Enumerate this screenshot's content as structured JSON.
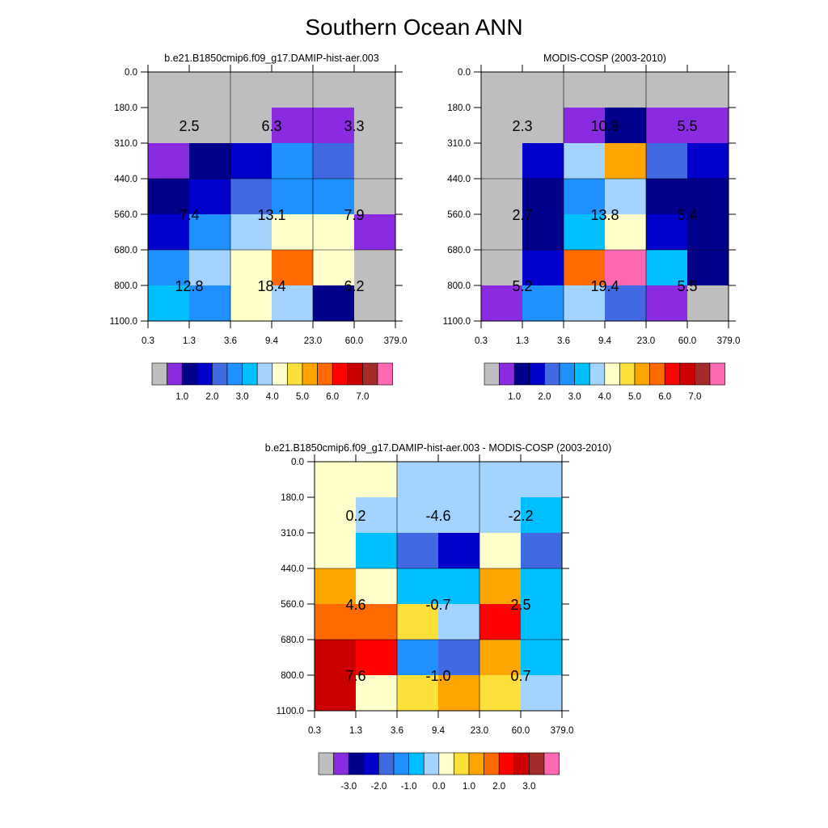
{
  "title": "Southern Ocean ANN",
  "palette": [
    "#BEBEBE",
    "#8A2BE2",
    "#00008B",
    "#0000CD",
    "#4169E1",
    "#1E90FF",
    "#00BFFF",
    "#A3D3FF",
    "#FFFFCC",
    "#FDE03A",
    "#FFA500",
    "#FF6A00",
    "#FF0000",
    "#CC0000",
    "#A52A2A",
    "#FF69B4"
  ],
  "chart_data": [
    {
      "type": "heatmap",
      "title": "b.e21.B1850cmip6.f09_g17.DAMIP-hist-aer.003",
      "x_tick_labels": [
        "0.3",
        "1.3",
        "3.6",
        "9.4",
        "23.0",
        "60.0",
        "379.0"
      ],
      "y_tick_labels": [
        "0.0",
        "180.0",
        "310.0",
        "440.0",
        "560.0",
        "680.0",
        "800.0",
        "1100.0"
      ],
      "cell_colors": [
        [
          "#BEBEBE",
          "#BEBEBE",
          "#BEBEBE",
          "#BEBEBE",
          "#BEBEBE",
          "#BEBEBE"
        ],
        [
          "#BEBEBE",
          "#BEBEBE",
          "#BEBEBE",
          "#8A2BE2",
          "#8A2BE2",
          "#BEBEBE"
        ],
        [
          "#8A2BE2",
          "#00008B",
          "#0000CD",
          "#1E90FF",
          "#4169E1",
          "#BEBEBE"
        ],
        [
          "#00008B",
          "#0000CD",
          "#4169E1",
          "#1E90FF",
          "#1E90FF",
          "#BEBEBE"
        ],
        [
          "#0000CD",
          "#1E90FF",
          "#A3D3FF",
          "#FFFFCC",
          "#FFFFCC",
          "#8A2BE2"
        ],
        [
          "#1E90FF",
          "#A3D3FF",
          "#FFFFCC",
          "#FF6A00",
          "#FFFFCC",
          "#BEBEBE"
        ],
        [
          "#00BFFF",
          "#1E90FF",
          "#FFFFCC",
          "#A3D3FF",
          "#00008B",
          "#BEBEBE"
        ]
      ],
      "block_values": [
        [
          "2.5",
          "6.3",
          "3.3"
        ],
        [
          "7.4",
          "13.1",
          "7.9"
        ],
        [
          "12.8",
          "18.4",
          "6.2"
        ]
      ],
      "colorbar_labels": [
        "1.0",
        "2.0",
        "3.0",
        "4.0",
        "5.0",
        "6.0",
        "7.0"
      ],
      "colorbar_colors": [
        "#BEBEBE",
        "#8A2BE2",
        "#00008B",
        "#0000CD",
        "#4169E1",
        "#1E90FF",
        "#00BFFF",
        "#A3D3FF",
        "#FFFFCC",
        "#FDE03A",
        "#FFA500",
        "#FF6A00",
        "#FF0000",
        "#CC0000",
        "#A52A2A",
        "#FF69B4"
      ]
    },
    {
      "type": "heatmap",
      "title": "MODIS-COSP (2003-2010)",
      "x_tick_labels": [
        "0.3",
        "1.3",
        "3.6",
        "9.4",
        "23.0",
        "60.0",
        "379.0"
      ],
      "y_tick_labels": [
        "0.0",
        "180.0",
        "310.0",
        "440.0",
        "560.0",
        "680.0",
        "800.0",
        "1100.0"
      ],
      "cell_colors": [
        [
          "#BEBEBE",
          "#BEBEBE",
          "#BEBEBE",
          "#BEBEBE",
          "#BEBEBE",
          "#BEBEBE"
        ],
        [
          "#BEBEBE",
          "#BEBEBE",
          "#8A2BE2",
          "#00008B",
          "#8A2BE2",
          "#8A2BE2"
        ],
        [
          "#BEBEBE",
          "#0000CD",
          "#A3D3FF",
          "#FFA500",
          "#4169E1",
          "#0000CD"
        ],
        [
          "#BEBEBE",
          "#00008B",
          "#1E90FF",
          "#A3D3FF",
          "#00008B",
          "#00008B"
        ],
        [
          "#BEBEBE",
          "#00008B",
          "#00BFFF",
          "#FFFFCC",
          "#0000CD",
          "#00008B"
        ],
        [
          "#BEBEBE",
          "#0000CD",
          "#FF6A00",
          "#FF69B4",
          "#00BFFF",
          "#00008B"
        ],
        [
          "#8A2BE2",
          "#1E90FF",
          "#A3D3FF",
          "#4169E1",
          "#8A2BE2",
          "#BEBEBE"
        ]
      ],
      "block_values": [
        [
          "2.3",
          "10.9",
          "5.5"
        ],
        [
          "2.7",
          "13.8",
          "5.4"
        ],
        [
          "5.2",
          "19.4",
          "5.5"
        ]
      ],
      "colorbar_labels": [
        "1.0",
        "2.0",
        "3.0",
        "4.0",
        "5.0",
        "6.0",
        "7.0"
      ],
      "colorbar_colors": [
        "#BEBEBE",
        "#8A2BE2",
        "#00008B",
        "#0000CD",
        "#4169E1",
        "#1E90FF",
        "#00BFFF",
        "#A3D3FF",
        "#FFFFCC",
        "#FDE03A",
        "#FFA500",
        "#FF6A00",
        "#FF0000",
        "#CC0000",
        "#A52A2A",
        "#FF69B4"
      ]
    },
    {
      "type": "heatmap",
      "title": "b.e21.B1850cmip6.f09_g17.DAMIP-hist-aer.003 - MODIS-COSP (2003-2010)",
      "x_tick_labels": [
        "0.3",
        "1.3",
        "3.6",
        "9.4",
        "23.0",
        "60.0",
        "379.0"
      ],
      "y_tick_labels": [
        "0.0",
        "180.0",
        "310.0",
        "440.0",
        "560.0",
        "680.0",
        "800.0",
        "1100.0"
      ],
      "cell_colors": [
        [
          "#FFFFCC",
          "#FFFFCC",
          "#A3D3FF",
          "#A3D3FF",
          "#A3D3FF",
          "#A3D3FF"
        ],
        [
          "#FFFFCC",
          "#A3D3FF",
          "#A3D3FF",
          "#A3D3FF",
          "#A3D3FF",
          "#00BFFF"
        ],
        [
          "#FFFFCC",
          "#00BFFF",
          "#4169E1",
          "#0000CD",
          "#FFFFCC",
          "#4169E1"
        ],
        [
          "#FFA500",
          "#FFFFCC",
          "#00BFFF",
          "#00BFFF",
          "#FFA500",
          "#00BFFF"
        ],
        [
          "#FF6A00",
          "#FF6A00",
          "#FDE03A",
          "#A3D3FF",
          "#FF0000",
          "#00BFFF"
        ],
        [
          "#CC0000",
          "#FF0000",
          "#1E90FF",
          "#4169E1",
          "#FFA500",
          "#00BFFF"
        ],
        [
          "#CC0000",
          "#FFFFCC",
          "#FDE03A",
          "#FFA500",
          "#FDE03A",
          "#A3D3FF"
        ]
      ],
      "block_values": [
        [
          "0.2",
          "-4.6",
          "-2.2"
        ],
        [
          "4.6",
          "-0.7",
          "2.5"
        ],
        [
          "7.6",
          "-1.0",
          "0.7"
        ]
      ],
      "colorbar_labels": [
        "-3.0",
        "-2.0",
        "-1.0",
        "0.0",
        "1.0",
        "2.0",
        "3.0"
      ],
      "colorbar_colors": [
        "#BEBEBE",
        "#8A2BE2",
        "#00008B",
        "#0000CD",
        "#4169E1",
        "#1E90FF",
        "#00BFFF",
        "#A3D3FF",
        "#FFFFCC",
        "#FDE03A",
        "#FFA500",
        "#FF6A00",
        "#FF0000",
        "#CC0000",
        "#A52A2A",
        "#FF69B4"
      ]
    }
  ]
}
